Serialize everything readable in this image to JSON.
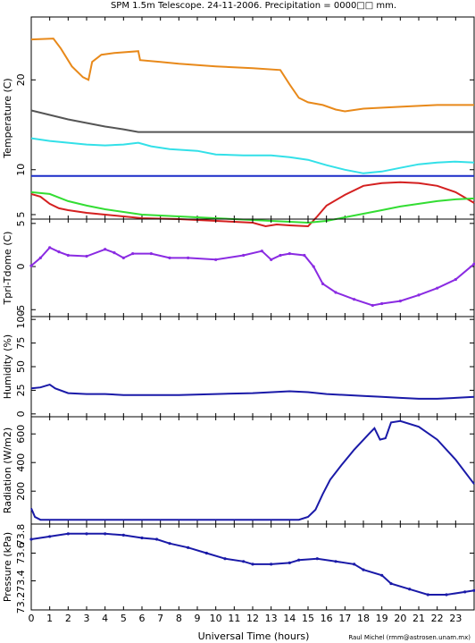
{
  "title": "SPM 1.5m Telescope. 24-11-2006. Precipitation = 0000□□ mm.",
  "credit": "Raul Michel (rmm@astrosen.unam.mx)",
  "xlabel": "Universal Time (hours)",
  "x_ticks": [
    0,
    1,
    2,
    3,
    4,
    5,
    6,
    7,
    8,
    9,
    10,
    11,
    12,
    13,
    14,
    15,
    16,
    17,
    18,
    19,
    20,
    21,
    22,
    23
  ],
  "colors": {
    "orange": "#e8891a",
    "gray": "#555555",
    "cyan": "#33e0e8",
    "blue": "#1a2cc8",
    "green": "#33dd33",
    "red": "#d42020",
    "purple": "#8a2be2",
    "navy": "#1a1aa8"
  },
  "chart_data": [
    {
      "type": "line",
      "ylabel": "Temperature (C)",
      "y_ticks": [
        5,
        10,
        20
      ],
      "ylim": [
        4.5,
        27
      ],
      "xlim": [
        0,
        24
      ],
      "series": [
        {
          "color_key": "orange",
          "points": [
            [
              0,
              24.5
            ],
            [
              1.2,
              24.6
            ],
            [
              1.6,
              23.5
            ],
            [
              2.2,
              21.5
            ],
            [
              2.8,
              20.3
            ],
            [
              3.1,
              20.0
            ],
            [
              3.3,
              22.0
            ],
            [
              3.8,
              22.8
            ],
            [
              4.5,
              23.0
            ],
            [
              5.8,
              23.2
            ],
            [
              5.9,
              22.2
            ],
            [
              7,
              22.0
            ],
            [
              8,
              21.8
            ],
            [
              10,
              21.5
            ],
            [
              12,
              21.3
            ],
            [
              13.5,
              21.1
            ],
            [
              14,
              19.5
            ],
            [
              14.5,
              18.0
            ],
            [
              15,
              17.5
            ],
            [
              15.8,
              17.2
            ],
            [
              16.5,
              16.7
            ],
            [
              17,
              16.5
            ],
            [
              18,
              16.8
            ],
            [
              20,
              17.0
            ],
            [
              22,
              17.2
            ],
            [
              24,
              17.2
            ]
          ]
        },
        {
          "color_key": "gray",
          "points": [
            [
              0,
              16.6
            ],
            [
              1,
              16.1
            ],
            [
              2,
              15.6
            ],
            [
              3,
              15.2
            ],
            [
              4,
              14.8
            ],
            [
              5,
              14.5
            ],
            [
              5.8,
              14.2
            ],
            [
              6,
              14.2
            ],
            [
              24,
              14.2
            ]
          ]
        },
        {
          "color_key": "cyan",
          "points": [
            [
              0,
              13.5
            ],
            [
              1,
              13.2
            ],
            [
              2,
              13.0
            ],
            [
              3,
              12.8
            ],
            [
              4,
              12.7
            ],
            [
              5,
              12.8
            ],
            [
              5.8,
              13.0
            ],
            [
              6.5,
              12.6
            ],
            [
              7.5,
              12.3
            ],
            [
              9,
              12.1
            ],
            [
              10,
              11.7
            ],
            [
              11.5,
              11.6
            ],
            [
              13,
              11.6
            ],
            [
              14,
              11.4
            ],
            [
              15,
              11.1
            ],
            [
              16,
              10.5
            ],
            [
              17,
              10.0
            ],
            [
              18,
              9.6
            ],
            [
              19,
              9.8
            ],
            [
              20,
              10.2
            ],
            [
              21,
              10.6
            ],
            [
              22,
              10.8
            ],
            [
              23,
              10.9
            ],
            [
              24,
              10.8
            ]
          ]
        },
        {
          "color_key": "blue",
          "points": [
            [
              0,
              9.3
            ],
            [
              24,
              9.3
            ]
          ]
        },
        {
          "color_key": "red",
          "points": [
            [
              0,
              7.3
            ],
            [
              0.5,
              7.0
            ],
            [
              1,
              6.2
            ],
            [
              1.5,
              5.7
            ],
            [
              2,
              5.5
            ],
            [
              3,
              5.2
            ],
            [
              4,
              5.0
            ],
            [
              5,
              4.8
            ],
            [
              6,
              4.6
            ],
            [
              8,
              4.5
            ],
            [
              10,
              4.3
            ],
            [
              12,
              4.1
            ],
            [
              12.7,
              3.7
            ],
            [
              13.3,
              3.9
            ],
            [
              14,
              3.8
            ],
            [
              15,
              3.7
            ],
            [
              15.5,
              4.8
            ],
            [
              16,
              6.0
            ],
            [
              17,
              7.2
            ],
            [
              18,
              8.2
            ],
            [
              19,
              8.5
            ],
            [
              20,
              8.6
            ],
            [
              21,
              8.5
            ],
            [
              22,
              8.2
            ],
            [
              23,
              7.5
            ],
            [
              24,
              6.3
            ]
          ]
        },
        {
          "color_key": "green",
          "points": [
            [
              0,
              7.5
            ],
            [
              1,
              7.3
            ],
            [
              2,
              6.5
            ],
            [
              3,
              6.0
            ],
            [
              4,
              5.6
            ],
            [
              5,
              5.3
            ],
            [
              6,
              5.0
            ],
            [
              8,
              4.8
            ],
            [
              10,
              4.6
            ],
            [
              12,
              4.4
            ],
            [
              14,
              4.2
            ],
            [
              15,
              4.1
            ],
            [
              16,
              4.3
            ],
            [
              17,
              4.7
            ],
            [
              18,
              5.1
            ],
            [
              19,
              5.5
            ],
            [
              20,
              5.9
            ],
            [
              21,
              6.2
            ],
            [
              22,
              6.5
            ],
            [
              23,
              6.7
            ],
            [
              24,
              6.8
            ]
          ]
        }
      ]
    },
    {
      "type": "scatter",
      "ylabel": "Tpri-Tdome (C)",
      "y_ticks": [
        -5,
        0,
        5
      ],
      "ylim": [
        -5.8,
        5.5
      ],
      "xlim": [
        0,
        24
      ],
      "series": [
        {
          "color_key": "purple",
          "points": [
            [
              0,
              0.1
            ],
            [
              0.5,
              1.0
            ],
            [
              1,
              2.2
            ],
            [
              1.5,
              1.7
            ],
            [
              2,
              1.3
            ],
            [
              3,
              1.2
            ],
            [
              4,
              2.0
            ],
            [
              4.5,
              1.6
            ],
            [
              5,
              1.0
            ],
            [
              5.5,
              1.5
            ],
            [
              6.5,
              1.5
            ],
            [
              7.5,
              1.0
            ],
            [
              8.5,
              1.0
            ],
            [
              10,
              0.8
            ],
            [
              11.5,
              1.3
            ],
            [
              12.5,
              1.8
            ],
            [
              13,
              0.8
            ],
            [
              13.5,
              1.3
            ],
            [
              14,
              1.5
            ],
            [
              14.8,
              1.3
            ],
            [
              15.3,
              0.0
            ],
            [
              15.8,
              -2.0
            ],
            [
              16.5,
              -3.0
            ],
            [
              17.5,
              -3.8
            ],
            [
              18.5,
              -4.5
            ],
            [
              19,
              -4.3
            ],
            [
              20,
              -4.0
            ],
            [
              21,
              -3.3
            ],
            [
              22,
              -2.5
            ],
            [
              23,
              -1.5
            ],
            [
              24,
              0.3
            ]
          ]
        }
      ]
    },
    {
      "type": "line",
      "ylabel": "Humidity (%)",
      "y_ticks": [
        0,
        25,
        50,
        75,
        100
      ],
      "ylim": [
        -3,
        103
      ],
      "xlim": [
        0,
        24
      ],
      "series": [
        {
          "color_key": "navy",
          "points": [
            [
              0,
              27
            ],
            [
              0.5,
              28
            ],
            [
              1,
              31
            ],
            [
              1.3,
              27
            ],
            [
              2,
              22
            ],
            [
              3,
              21
            ],
            [
              4,
              21
            ],
            [
              5,
              20
            ],
            [
              8,
              20
            ],
            [
              10,
              21
            ],
            [
              12,
              22
            ],
            [
              14,
              24
            ],
            [
              15,
              23
            ],
            [
              16,
              21
            ],
            [
              18,
              19
            ],
            [
              19,
              18
            ],
            [
              20,
              17
            ],
            [
              21,
              16
            ],
            [
              22,
              16
            ],
            [
              23,
              17
            ],
            [
              24,
              18
            ]
          ]
        }
      ]
    },
    {
      "type": "line",
      "ylabel": "Radiation (W/m2)",
      "y_ticks": [
        200,
        400,
        600
      ],
      "ylim": [
        -30,
        720
      ],
      "xlim": [
        0,
        24
      ],
      "series": [
        {
          "color_key": "navy",
          "points": [
            [
              0,
              80
            ],
            [
              0.2,
              20
            ],
            [
              0.5,
              0
            ],
            [
              1,
              0
            ],
            [
              5,
              0
            ],
            [
              10,
              0
            ],
            [
              14.5,
              0
            ],
            [
              15,
              20
            ],
            [
              15.4,
              70
            ],
            [
              15.8,
              180
            ],
            [
              16.2,
              280
            ],
            [
              16.8,
              380
            ],
            [
              17.5,
              490
            ],
            [
              18.3,
              600
            ],
            [
              18.6,
              640
            ],
            [
              18.9,
              560
            ],
            [
              19.2,
              570
            ],
            [
              19.5,
              680
            ],
            [
              20,
              690
            ],
            [
              21,
              650
            ],
            [
              22,
              560
            ],
            [
              23,
              420
            ],
            [
              24,
              250
            ]
          ]
        }
      ]
    },
    {
      "type": "scatter",
      "ylabel": "Pressure (kPa)",
      "y_ticks": [
        73.4,
        73.6
      ],
      "y_tick_labels": [
        "73.4",
        "73.6"
      ],
      "top_label": "73.8",
      "bottom_label": "73.2",
      "ylim": [
        73.19,
        73.81
      ],
      "xlim": [
        0,
        24
      ],
      "series": [
        {
          "color_key": "navy",
          "points": [
            [
              0,
              73.7
            ],
            [
              1,
              73.72
            ],
            [
              2,
              73.74
            ],
            [
              3,
              73.74
            ],
            [
              4,
              73.74
            ],
            [
              5,
              73.73
            ],
            [
              6,
              73.71
            ],
            [
              6.8,
              73.7
            ],
            [
              7.5,
              73.67
            ],
            [
              8.5,
              73.64
            ],
            [
              9.5,
              73.6
            ],
            [
              10.5,
              73.56
            ],
            [
              11.5,
              73.54
            ],
            [
              12,
              73.52
            ],
            [
              13,
              73.52
            ],
            [
              14,
              73.53
            ],
            [
              14.5,
              73.55
            ],
            [
              15.5,
              73.56
            ],
            [
              16.5,
              73.54
            ],
            [
              17.5,
              73.52
            ],
            [
              18,
              73.48
            ],
            [
              19,
              73.44
            ],
            [
              19.5,
              73.38
            ],
            [
              20.5,
              73.34
            ],
            [
              21.5,
              73.3
            ],
            [
              22.5,
              73.3
            ],
            [
              23.5,
              73.32
            ],
            [
              24,
              73.33
            ]
          ]
        }
      ]
    }
  ]
}
